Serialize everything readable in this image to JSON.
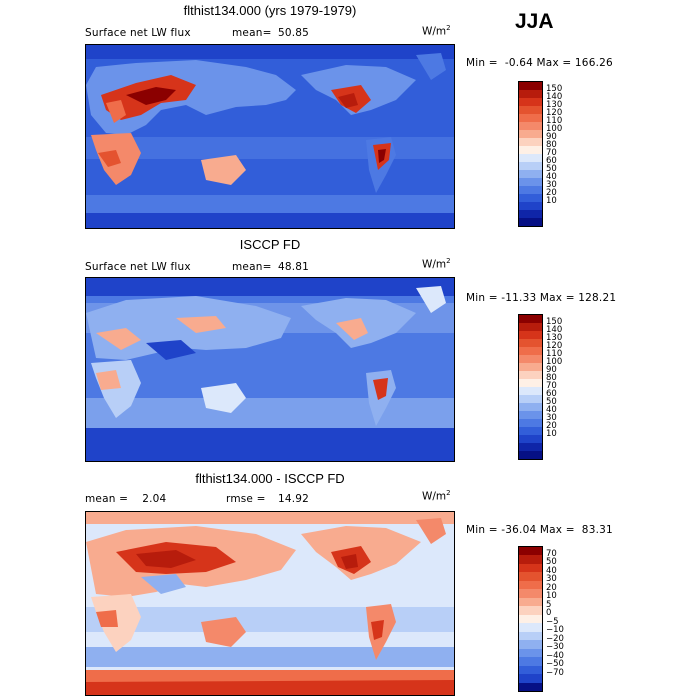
{
  "season": "JJA",
  "panels": [
    {
      "title": "flthist134.000 (yrs 1979-1979)",
      "left_label": "Surface net LW flux",
      "stat_label": "mean=",
      "stat_value": "50.85",
      "units": "W/m",
      "units_sup": "2",
      "minmax": "Min =  -0.64 Max = 166.26",
      "colorbar": {
        "ticks": [
          "150",
          "140",
          "130",
          "120",
          "110",
          "100",
          "90",
          "80",
          "70",
          "60",
          "50",
          "40",
          "30",
          "20",
          "10"
        ],
        "colors": [
          "#8b0000",
          "#b71c0c",
          "#d6341a",
          "#e4532f",
          "#ef6d4a",
          "#f4896a",
          "#f8ab8f",
          "#fcd2bf",
          "#fef0e6",
          "#dce8fb",
          "#b8cff7",
          "#8fb0f0",
          "#6b93ea",
          "#4d79e3",
          "#325ed9",
          "#1f43c9",
          "#0f25a8",
          "#061085"
        ]
      }
    },
    {
      "title": "ISCCP FD",
      "left_label": "Surface net LW flux",
      "stat_label": "mean=",
      "stat_value": "48.81",
      "units": "W/m",
      "units_sup": "2",
      "minmax": "Min = -11.33 Max = 128.21",
      "colorbar": {
        "ticks": [
          "150",
          "140",
          "130",
          "120",
          "110",
          "100",
          "90",
          "80",
          "70",
          "60",
          "50",
          "40",
          "30",
          "20",
          "10"
        ],
        "colors": [
          "#8b0000",
          "#b71c0c",
          "#d6341a",
          "#e4532f",
          "#ef6d4a",
          "#f4896a",
          "#f8ab8f",
          "#fcd2bf",
          "#fef0e6",
          "#dce8fb",
          "#b8cff7",
          "#8fb0f0",
          "#6b93ea",
          "#4d79e3",
          "#325ed9",
          "#1f43c9",
          "#0f25a8",
          "#061085"
        ]
      }
    },
    {
      "title": "flthist134.000 - ISCCP FD",
      "left_label": "mean =    2.04",
      "stat_label": "rmse =",
      "stat_value": "14.92",
      "units": "W/m",
      "units_sup": "2",
      "minmax": "Min = -36.04 Max =  83.31",
      "colorbar": {
        "ticks": [
          "70",
          "50",
          "40",
          "30",
          "20",
          "10",
          "5",
          "0",
          "−5",
          "−10",
          "−20",
          "−30",
          "−40",
          "−50",
          "−70"
        ],
        "colors": [
          "#8b0000",
          "#b71c0c",
          "#d6341a",
          "#e4532f",
          "#ef6d4a",
          "#f4896a",
          "#f8ab8f",
          "#fcd2bf",
          "#fef0e6",
          "#dce8fb",
          "#b8cff7",
          "#8fb0f0",
          "#6b93ea",
          "#4d79e3",
          "#325ed9",
          "#1f43c9",
          "#061085"
        ]
      }
    }
  ]
}
